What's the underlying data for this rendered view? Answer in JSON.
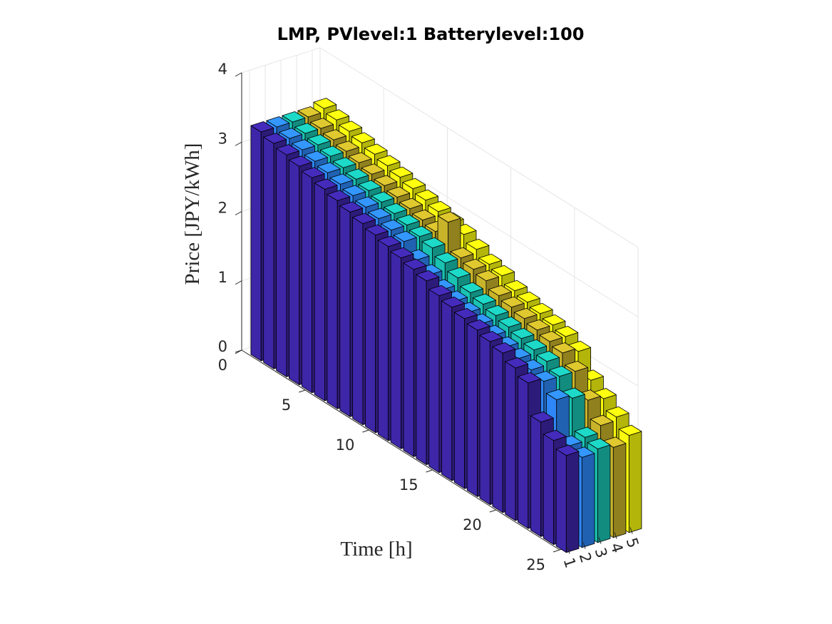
{
  "chart_data": {
    "type": "bar3",
    "title": "LMP, PVlevel:1 Batterylevel:100",
    "xlabel": "Time [h]",
    "ylabel": "",
    "zlabel": "Price [JPY/kWh]",
    "time_ticks": [
      "0",
      "5",
      "10",
      "15",
      "20",
      "25"
    ],
    "series_ticks": [
      "1",
      "2",
      "3",
      "4",
      "5"
    ],
    "price_ticks": [
      "0",
      "1",
      "2",
      "3",
      "4"
    ],
    "xlim": [
      0,
      25
    ],
    "ylim": [
      0.5,
      5.5
    ],
    "zlim": [
      0,
      4
    ],
    "grid": true,
    "series": [
      {
        "index": 1,
        "color": "#3e26a8",
        "values": [
          3.3,
          3.25,
          3.2,
          3.15,
          3.1,
          3.05,
          3.0,
          2.95,
          2.9,
          2.85,
          2.8,
          2.75,
          2.7,
          2.65,
          2.55,
          2.5,
          2.45,
          2.4,
          2.35,
          2.3,
          2.2,
          2.1,
          1.65,
          1.5,
          1.4
        ]
      },
      {
        "index": 2,
        "color": "#2e87f7",
        "values": [
          3.3,
          3.25,
          3.2,
          3.15,
          3.1,
          3.05,
          3.0,
          2.95,
          2.9,
          2.85,
          2.8,
          2.65,
          2.55,
          2.45,
          2.4,
          2.35,
          2.3,
          2.25,
          2.2,
          2.15,
          2.1,
          2.05,
          1.9,
          1.35,
          1.3
        ]
      },
      {
        "index": 3,
        "color": "#1ac2b2",
        "values": [
          3.3,
          3.25,
          3.2,
          3.15,
          3.1,
          3.05,
          3.0,
          2.95,
          2.9,
          2.85,
          2.8,
          2.75,
          2.65,
          2.55,
          2.45,
          2.4,
          2.35,
          2.3,
          2.25,
          2.2,
          2.15,
          2.05,
          1.85,
          1.4,
          1.35
        ]
      },
      {
        "index": 4,
        "color": "#c8b32a",
        "values": [
          3.3,
          3.25,
          3.2,
          3.15,
          3.1,
          3.05,
          3.0,
          2.95,
          2.9,
          2.85,
          2.8,
          3.05,
          2.65,
          2.6,
          2.55,
          2.45,
          2.4,
          2.35,
          2.3,
          2.25,
          2.2,
          2.05,
          1.75,
          1.5,
          1.3
        ]
      },
      {
        "index": 5,
        "color": "#f9fb0e",
        "values": [
          3.35,
          3.3,
          3.25,
          3.2,
          3.15,
          3.1,
          3.05,
          3.0,
          2.95,
          2.9,
          2.85,
          2.8,
          2.7,
          2.6,
          2.55,
          2.45,
          2.4,
          2.35,
          2.3,
          2.25,
          2.15,
          1.85,
          1.7,
          1.55,
          1.4
        ]
      }
    ]
  }
}
